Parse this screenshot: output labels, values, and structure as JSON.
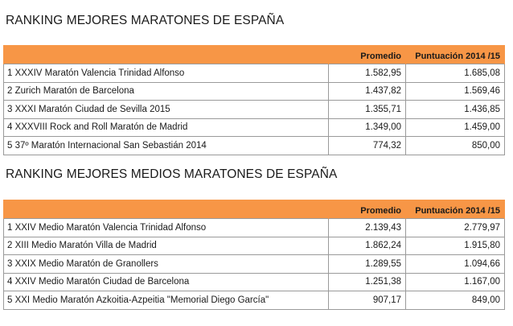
{
  "marathons": {
    "title": "RANKING MEJORES MARATONES DE ESPAÑA",
    "headers": {
      "name": "",
      "avg": "Promedio",
      "score": "Puntuación 2014 /15"
    },
    "rows": [
      {
        "name": "1 XXXIV Maratón Valencia Trinidad Alfonso",
        "avg": "1.582,95",
        "score": "1.685,08"
      },
      {
        "name": "2 Zurich Maratón de Barcelona",
        "avg": "1.437,82",
        "score": "1.569,46"
      },
      {
        "name": "3 XXXI Maratón Ciudad de Sevilla 2015",
        "avg": "1.355,71",
        "score": "1.436,85"
      },
      {
        "name": "4 XXXVIII Rock and Roll Maratón de Madrid",
        "avg": "1.349,00",
        "score": "1.459,00"
      },
      {
        "name": "5 37º Maratón Internacional San Sebastián 2014",
        "avg": "774,32",
        "score": "850,00"
      }
    ]
  },
  "half_marathons": {
    "title": "RANKING MEJORES MEDIOS MARATONES DE ESPAÑA",
    "headers": {
      "name": "",
      "avg": "Promedio",
      "score": "Puntuación 2014 /15"
    },
    "rows": [
      {
        "name": "1 XXIV Medio Maratón Valencia Trinidad Alfonso",
        "avg": "2.139,43",
        "score": "2.779,97"
      },
      {
        "name": "2 XIII Medio Maratón Villa de Madrid",
        "avg": "1.862,24",
        "score": "1.915,80"
      },
      {
        "name": "3 XXIX Medio Maratón de Granollers",
        "avg": "1.289,55",
        "score": "1.094,66"
      },
      {
        "name": "4 XXIV Medio Maratón Ciudad de Barcelona",
        "avg": "1.251,38",
        "score": "1.167,00"
      },
      {
        "name": "5 XXI Medio Maratón Azkoitia-Azpeitia \"Memorial Diego García\"",
        "avg": "907,17",
        "score": "849,00"
      }
    ]
  }
}
